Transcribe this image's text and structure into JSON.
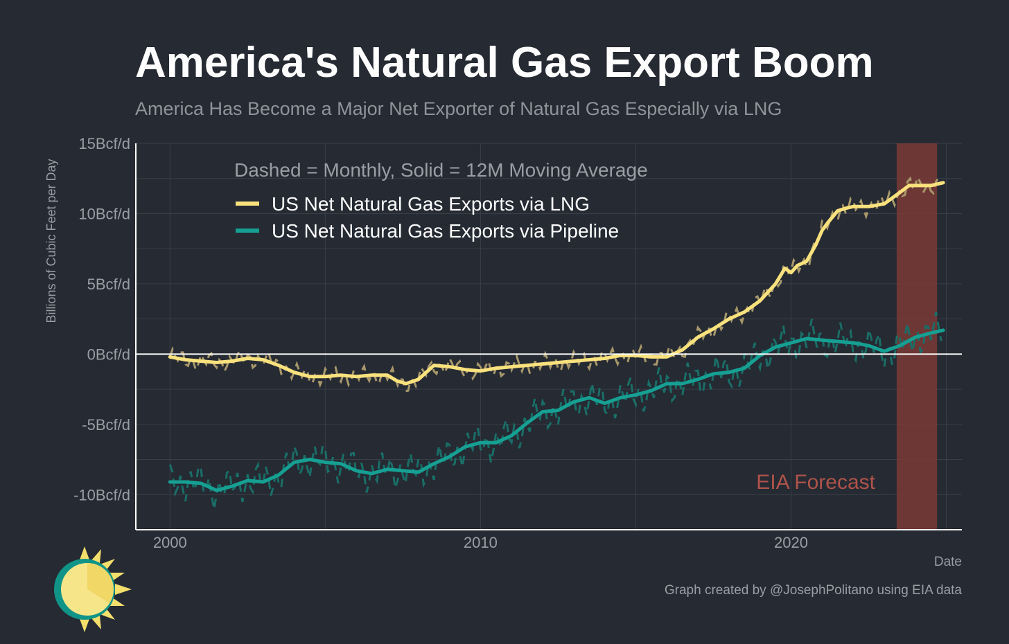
{
  "title": "America's Natural Gas Export Boom",
  "subtitle": "America Has Become a Major Net Exporter of Natural Gas Especially via LNG",
  "caption": "Graph created by @JosephPolitano using EIA data",
  "colors": {
    "background": "#252a33",
    "lng": "#f9e27d",
    "lng_monthly": "#a8986b",
    "pipeline": "#16a093",
    "pipeline_monthly": "#1a6e67",
    "forecast_band": "#7a3a36",
    "forecast_text": "#b0534a",
    "grid": "#3a3f48",
    "axis": "#ffffff"
  },
  "chart_data": {
    "type": "line",
    "title": "America's Natural Gas Export Boom",
    "subtitle": "America Has Become a Major Net Exporter of Natural Gas Especially via LNG",
    "xlabel": "Date",
    "ylabel": "Billions of Cubic Feet per Day",
    "xlim": [
      1998.9,
      2025.5
    ],
    "ylim": [
      -12.5,
      15
    ],
    "x_ticks": [
      2000,
      2010,
      2020
    ],
    "x_tick_labels": [
      "2000",
      "2010",
      "2020"
    ],
    "y_ticks": [
      -10,
      -5,
      0,
      5,
      10,
      15
    ],
    "y_tick_labels": [
      "-10Bcf/d",
      "-5Bcf/d",
      "0Bcf/d",
      "5Bcf/d",
      "10Bcf/d",
      "15Bcf/d"
    ],
    "grid": true,
    "legend_position": "top-left",
    "legend_note": "Dashed = Monthly, Solid = 12M Moving Average",
    "series": [
      {
        "name": "US Net Natural Gas Exports via LNG",
        "x": [
          2000,
          2000.5,
          2001,
          2001.5,
          2002,
          2002.5,
          2003,
          2003.5,
          2004,
          2004.5,
          2005,
          2005.5,
          2006,
          2006.5,
          2007,
          2007.3,
          2007.6,
          2008,
          2008.5,
          2009,
          2009.5,
          2010,
          2010.5,
          2011,
          2011.5,
          2012,
          2012.5,
          2013,
          2013.5,
          2014,
          2014.5,
          2015,
          2015.5,
          2016,
          2016.5,
          2017,
          2017.5,
          2018,
          2018.5,
          2019,
          2019.5,
          2019.8,
          2020,
          2020.2,
          2020.5,
          2020.8,
          2021,
          2021.2,
          2021.5,
          2021.8,
          2022,
          2022.5,
          2023,
          2023.5,
          2023.8,
          2024,
          2024.5,
          2024.9
        ],
        "values": [
          -0.2,
          -0.4,
          -0.5,
          -0.6,
          -0.5,
          -0.3,
          -0.4,
          -0.8,
          -1.3,
          -1.6,
          -1.6,
          -1.5,
          -1.6,
          -1.5,
          -1.5,
          -1.9,
          -2.1,
          -1.8,
          -0.8,
          -0.9,
          -1.1,
          -1.2,
          -1.0,
          -0.9,
          -0.8,
          -0.7,
          -0.6,
          -0.5,
          -0.4,
          -0.3,
          -0.1,
          -0.1,
          -0.2,
          -0.2,
          0.3,
          1.2,
          1.8,
          2.5,
          3.0,
          3.8,
          5.0,
          6.1,
          5.8,
          6.3,
          6.6,
          7.8,
          8.8,
          9.4,
          10.2,
          10.4,
          10.5,
          10.5,
          10.7,
          11.5,
          12.0,
          12.0,
          12.0,
          12.2
        ]
      },
      {
        "name": "US Net Natural Gas Exports via Pipeline",
        "x": [
          2000,
          2000.5,
          2001,
          2001.5,
          2002,
          2002.5,
          2003,
          2003.5,
          2004,
          2004.5,
          2005,
          2005.5,
          2006,
          2006.5,
          2007,
          2007.5,
          2008,
          2008.5,
          2009,
          2009.5,
          2010,
          2010.5,
          2011,
          2011.5,
          2012,
          2012.5,
          2013,
          2013.5,
          2014,
          2014.5,
          2015,
          2015.5,
          2016,
          2016.5,
          2017,
          2017.5,
          2018,
          2018.5,
          2019,
          2019.5,
          2020,
          2020.5,
          2021,
          2021.5,
          2022,
          2022.5,
          2023,
          2023.5,
          2024,
          2024.5,
          2024.9
        ],
        "values": [
          -9.1,
          -9.1,
          -9.2,
          -9.7,
          -9.4,
          -9.0,
          -9.1,
          -8.6,
          -7.7,
          -7.5,
          -7.7,
          -7.8,
          -8.3,
          -8.5,
          -8.2,
          -8.3,
          -8.4,
          -7.8,
          -7.3,
          -6.6,
          -6.3,
          -6.3,
          -5.8,
          -4.9,
          -4.1,
          -4.0,
          -3.4,
          -3.1,
          -3.5,
          -3.1,
          -2.9,
          -2.6,
          -2.1,
          -2.1,
          -1.8,
          -1.4,
          -1.3,
          -1.0,
          -0.1,
          0.5,
          0.8,
          1.1,
          1.0,
          0.9,
          0.8,
          0.6,
          0.2,
          0.6,
          1.2,
          1.5,
          1.7
        ]
      }
    ],
    "annotations": [
      {
        "text": "EIA Forecast",
        "type": "shaded_region",
        "x_range": [
          2023.4,
          2024.7
        ]
      }
    ]
  }
}
